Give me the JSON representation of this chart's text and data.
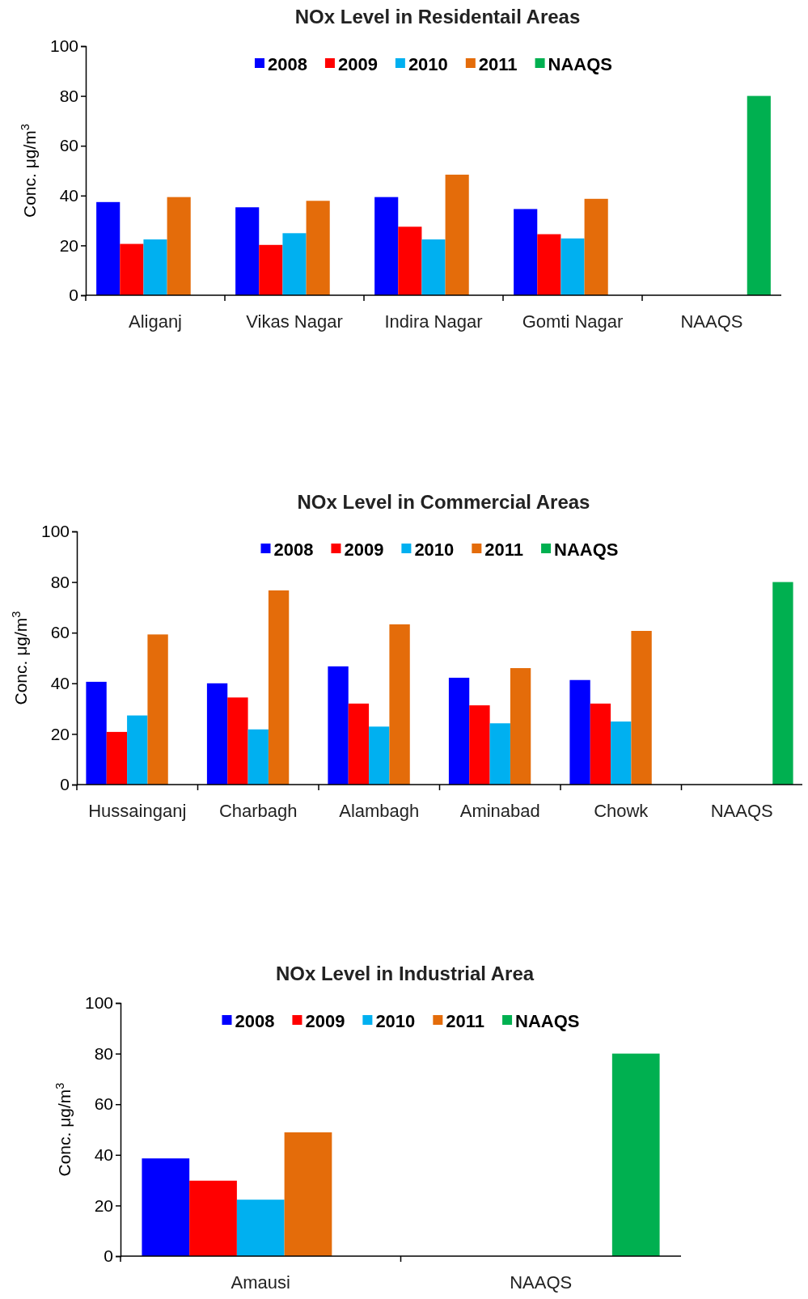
{
  "chart_data": [
    {
      "type": "bar",
      "title": "NOx Level in Residentail Areas",
      "ylabel": "Conc. μg/m$^{3}$",
      "categories": [
        "Aliganj",
        "Vikas Nagar",
        "Indira Nagar",
        "Gomti Nagar",
        "NAAQS"
      ],
      "series": [
        {
          "name": "2008",
          "color": "#0000ff",
          "values": [
            37.4,
            35.3,
            39.4,
            34.6,
            null
          ]
        },
        {
          "name": "2009",
          "color": "#ff0000",
          "values": [
            20.6,
            20.2,
            27.5,
            24.5,
            null
          ]
        },
        {
          "name": "2010",
          "color": "#00b0f0",
          "values": [
            22.4,
            24.9,
            22.4,
            22.8,
            null
          ]
        },
        {
          "name": "2011",
          "color": "#e46c0a",
          "values": [
            39.4,
            37.9,
            48.4,
            38.7,
            null
          ]
        },
        {
          "name": "NAAQS",
          "color": "#00b050",
          "values": [
            null,
            null,
            null,
            null,
            80
          ]
        }
      ],
      "ylim": [
        0,
        100
      ],
      "yticks": [
        0,
        20,
        40,
        60,
        80,
        100
      ],
      "grid": false,
      "legend": "top"
    },
    {
      "type": "bar",
      "title": "NOx Level in Commercial Areas",
      "ylabel": "Conc. μg/m$^{3}$",
      "categories": [
        "Hussainganj",
        "Charbagh",
        "Alambagh",
        "Aminabad",
        "Chowk",
        "NAAQS"
      ],
      "series": [
        {
          "name": "2008",
          "color": "#0000ff",
          "values": [
            40.6,
            40,
            46.7,
            42.2,
            41.3,
            null
          ]
        },
        {
          "name": "2009",
          "color": "#ff0000",
          "values": [
            20.8,
            34.4,
            32,
            31.3,
            32,
            null
          ]
        },
        {
          "name": "2010",
          "color": "#00b0f0",
          "values": [
            27.3,
            21.8,
            22.9,
            24.2,
            24.9,
            null
          ]
        },
        {
          "name": "2011",
          "color": "#e46c0a",
          "values": [
            59.3,
            76.7,
            63.3,
            46,
            60.7,
            null
          ]
        },
        {
          "name": "NAAQS",
          "color": "#00b050",
          "values": [
            null,
            null,
            null,
            null,
            null,
            80
          ]
        }
      ],
      "ylim": [
        0,
        100
      ],
      "yticks": [
        0,
        20,
        40,
        60,
        80,
        100
      ],
      "grid": false,
      "legend": "top"
    },
    {
      "type": "bar",
      "title": "NOx Level in Industrial Area",
      "ylabel": "Conc. μg/m$^{3}$",
      "categories": [
        "Amausi",
        "NAAQS"
      ],
      "series": [
        {
          "name": "2008",
          "color": "#0000ff",
          "values": [
            38.6,
            null
          ]
        },
        {
          "name": "2009",
          "color": "#ff0000",
          "values": [
            29.8,
            null
          ]
        },
        {
          "name": "2010",
          "color": "#00b0f0",
          "values": [
            22.3,
            null
          ]
        },
        {
          "name": "2011",
          "color": "#e46c0a",
          "values": [
            48.9,
            null
          ]
        },
        {
          "name": "NAAQS",
          "color": "#00b050",
          "values": [
            null,
            80
          ]
        }
      ],
      "ylim": [
        0,
        100
      ],
      "yticks": [
        0,
        20,
        40,
        60,
        80,
        100
      ],
      "grid": false,
      "legend": "top"
    }
  ]
}
